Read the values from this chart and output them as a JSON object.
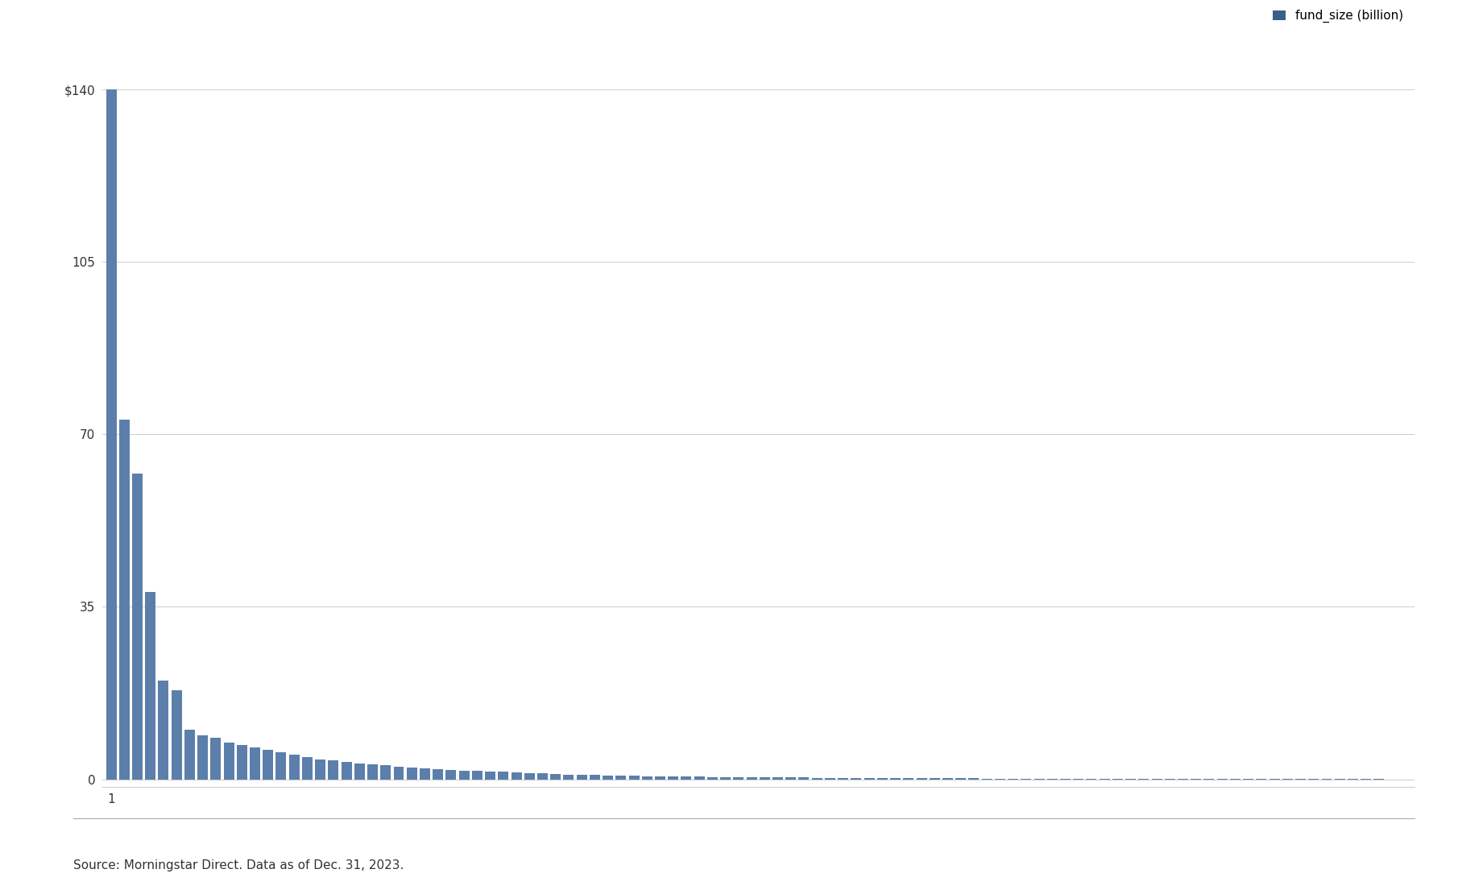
{
  "fund_sizes": [
    140.0,
    73.0,
    62.0,
    38.0,
    20.0,
    18.0,
    10.0,
    9.0,
    8.5,
    7.5,
    7.0,
    6.5,
    6.0,
    5.5,
    5.0,
    4.5,
    4.0,
    3.8,
    3.5,
    3.2,
    3.0,
    2.8,
    2.6,
    2.4,
    2.2,
    2.0,
    1.9,
    1.8,
    1.7,
    1.6,
    1.5,
    1.4,
    1.3,
    1.2,
    1.1,
    1.0,
    0.9,
    0.85,
    0.8,
    0.75,
    0.7,
    0.67,
    0.63,
    0.6,
    0.57,
    0.54,
    0.51,
    0.48,
    0.46,
    0.44,
    0.42,
    0.4,
    0.38,
    0.36,
    0.34,
    0.32,
    0.3,
    0.28,
    0.27,
    0.26,
    0.25,
    0.24,
    0.23,
    0.22,
    0.21,
    0.2,
    0.19,
    0.18,
    0.17,
    0.16,
    0.155,
    0.15,
    0.145,
    0.14,
    0.135,
    0.13,
    0.125,
    0.12,
    0.115,
    0.11,
    0.105,
    0.1,
    0.095,
    0.09,
    0.085,
    0.08,
    0.075,
    0.07,
    0.065,
    0.06,
    0.055,
    0.05,
    0.045,
    0.04,
    0.035,
    0.03,
    0.025,
    0.02,
    0.015,
    0.01
  ],
  "bar_color": "#5b7faa",
  "background_color": "#ffffff",
  "grid_color": "#cccccc",
  "yticks": [
    0,
    35,
    70,
    105,
    140
  ],
  "yticklabels": [
    "0",
    "35",
    "70",
    "105",
    "$140"
  ],
  "ylim": [
    -1.5,
    140
  ],
  "xlabel_text": "1",
  "legend_label": "fund_size (billion)",
  "legend_color": "#3a5f8a",
  "source_text": "Source: Morningstar Direct. Data as of Dec. 31, 2023.",
  "source_fontsize": 11,
  "tick_fontsize": 11,
  "legend_fontsize": 11
}
